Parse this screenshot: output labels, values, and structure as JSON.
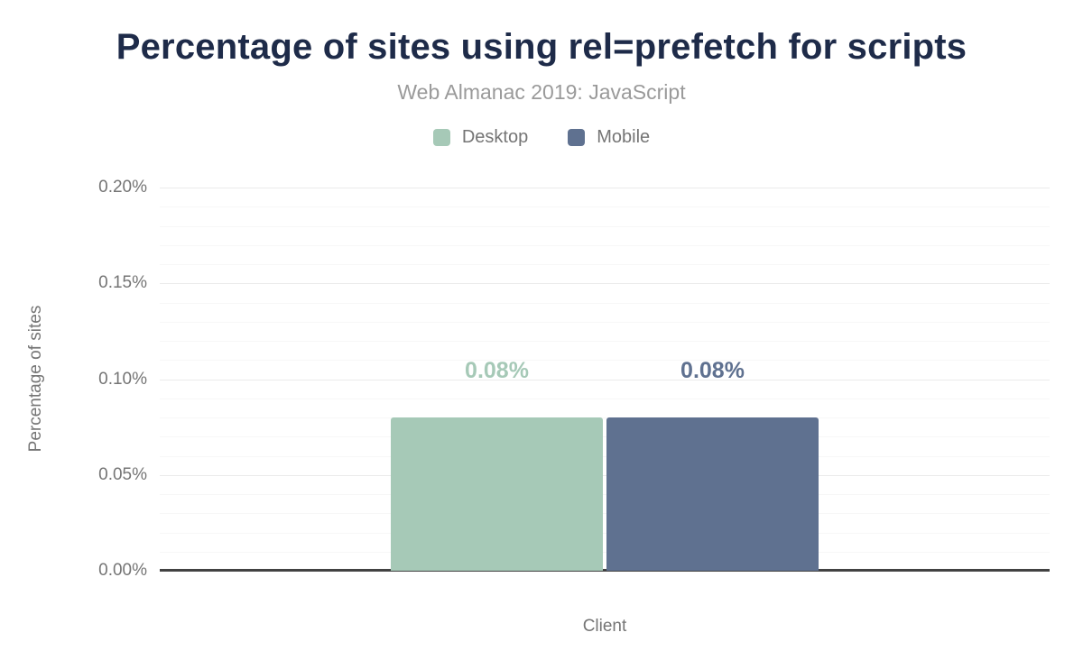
{
  "figure": {
    "title": "Percentage of sites using rel=prefetch for scripts",
    "subtitle": "Web Almanac 2019: JavaScript"
  },
  "chart_data": {
    "type": "bar",
    "categories": [
      "Client"
    ],
    "series": [
      {
        "name": "Desktop",
        "values": [
          0.08
        ],
        "color": "#a6c9b7"
      },
      {
        "name": "Mobile",
        "values": [
          0.08
        ],
        "color": "#5f7190"
      }
    ],
    "data_labels": [
      [
        "0.08%"
      ],
      [
        "0.08%"
      ]
    ],
    "title": "Percentage of sites using rel=prefetch for scripts",
    "subtitle": "Web Almanac 2019: JavaScript",
    "xlabel": "Client",
    "ylabel": "Percentage of sites",
    "ylim": [
      0,
      0.2
    ],
    "y_ticks": [
      {
        "value": 0.0,
        "label": "0.00%"
      },
      {
        "value": 0.05,
        "label": "0.05%"
      },
      {
        "value": 0.1,
        "label": "0.10%"
      },
      {
        "value": 0.15,
        "label": "0.15%"
      },
      {
        "value": 0.2,
        "label": "0.20%"
      }
    ],
    "minor_grid_step": 0.01,
    "grid": true,
    "legend_position": "top"
  },
  "style": {
    "title_color": "#1e2b49",
    "subtitle_color": "#9a9a9a",
    "axis_text_color": "#757575",
    "major_grid_color": "#ebebeb",
    "minor_grid_color": "#f7f7f7",
    "axis_line_color": "#424242",
    "background": "#ffffff"
  }
}
